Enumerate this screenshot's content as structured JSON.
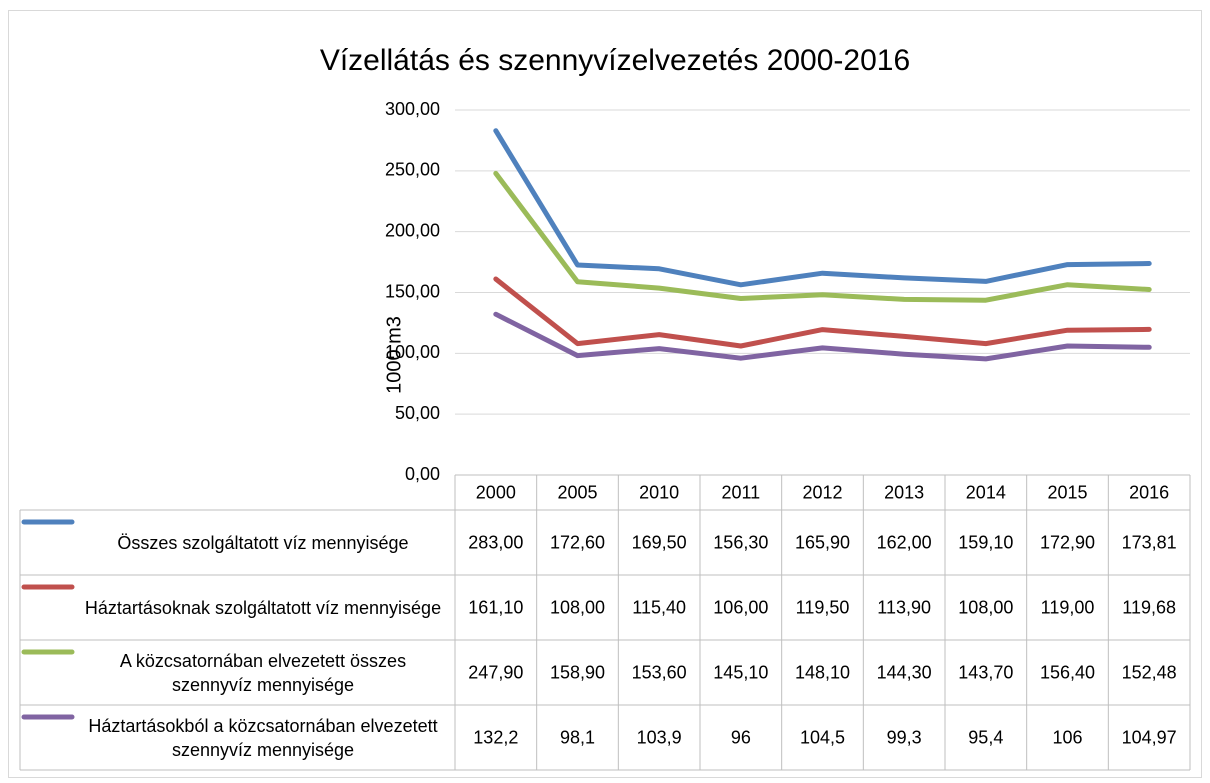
{
  "chart_data": {
    "type": "line",
    "title": "Vízellátás és szennyvízelvezetés 2000-2016",
    "y_label": "1000 m3",
    "categories": [
      "2000",
      "2005",
      "2010",
      "2011",
      "2012",
      "2013",
      "2014",
      "2015",
      "2016"
    ],
    "ylim": [
      0,
      300
    ],
    "yticks": [
      {
        "value": 0,
        "label": "0,00"
      },
      {
        "value": 50,
        "label": "50,00"
      },
      {
        "value": 100,
        "label": "100,00"
      },
      {
        "value": 150,
        "label": "150,00"
      },
      {
        "value": 200,
        "label": "200,00"
      },
      {
        "value": 250,
        "label": "250,00"
      },
      {
        "value": 300,
        "label": "300,00"
      }
    ],
    "grid": true,
    "series": [
      {
        "name": "Összes szolgáltatott víz mennyisége",
        "color": "#4f81bd",
        "values": [
          283.0,
          172.6,
          169.5,
          156.3,
          165.9,
          162.0,
          159.1,
          172.9,
          173.81
        ],
        "value_labels": [
          "283,00",
          "172,60",
          "169,50",
          "156,30",
          "165,90",
          "162,00",
          "159,10",
          "172,90",
          "173,81"
        ]
      },
      {
        "name": "Háztartásoknak szolgáltatott víz mennyisége",
        "color": "#c0504d",
        "values": [
          161.1,
          108.0,
          115.4,
          106.0,
          119.5,
          113.9,
          108.0,
          119.0,
          119.68
        ],
        "value_labels": [
          "161,10",
          "108,00",
          "115,40",
          "106,00",
          "119,50",
          "113,90",
          "108,00",
          "119,00",
          "119,68"
        ]
      },
      {
        "name": "A közcsatornában elvezetett összes szennyvíz mennyisége",
        "color": "#9bbb59",
        "values": [
          247.9,
          158.9,
          153.6,
          145.1,
          148.1,
          144.3,
          143.7,
          156.4,
          152.48
        ],
        "value_labels": [
          "247,90",
          "158,90",
          "153,60",
          "145,10",
          "148,10",
          "144,30",
          "143,70",
          "156,40",
          "152,48"
        ]
      },
      {
        "name": "Háztartásokból a közcsatornában elvezetett szennyvíz mennyisége",
        "color": "#8064a2",
        "values": [
          132.2,
          98.1,
          103.9,
          96,
          104.5,
          99.3,
          95.4,
          106,
          104.97
        ],
        "value_labels": [
          "132,2",
          "98,1",
          "103,9",
          "96",
          "104,5",
          "99,3",
          "95,4",
          "106",
          "104,97"
        ]
      }
    ]
  }
}
